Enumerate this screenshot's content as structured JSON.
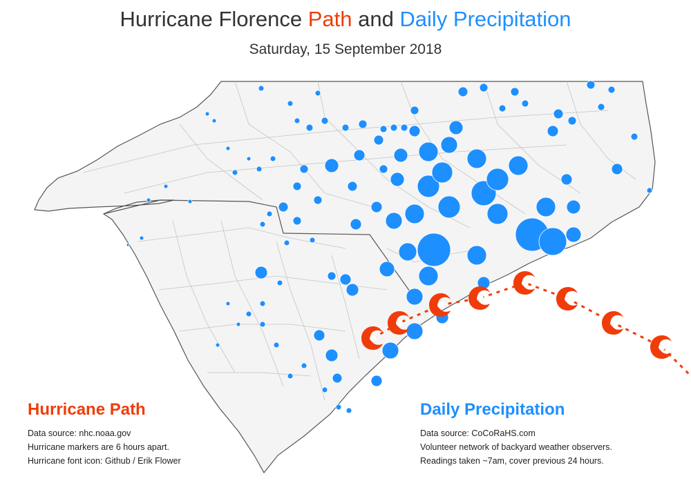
{
  "title": {
    "part1": "Hurricane Florence ",
    "part2": "Path",
    "part3": " and ",
    "part4": "Daily Precipitation"
  },
  "subtitle": "Saturday, 15 September 2018",
  "colors": {
    "hurricane": "#f03c0a",
    "precip": "#1e8fff",
    "land": "#f4f4f4",
    "border": "#555555",
    "county": "#bdbdbd"
  },
  "hurricane_legend": {
    "heading": "Hurricane Path",
    "lines": [
      "Data source: nhc.noaa.gov",
      "Hurricane markers are 6 hours apart.",
      "Hurricane font icon: Github / Erik Flower"
    ]
  },
  "precip_legend": {
    "heading": "Daily Precipitation",
    "lines": [
      "Data source: CoCoRaHS.com",
      "Volunteer network of backyard weather observers.",
      "Readings taken ~7am, cover previous 24 hours."
    ]
  },
  "hurricane_icon": "hurricane-icon",
  "precip_marker": "circle",
  "hurricane_markers_count": 8
}
